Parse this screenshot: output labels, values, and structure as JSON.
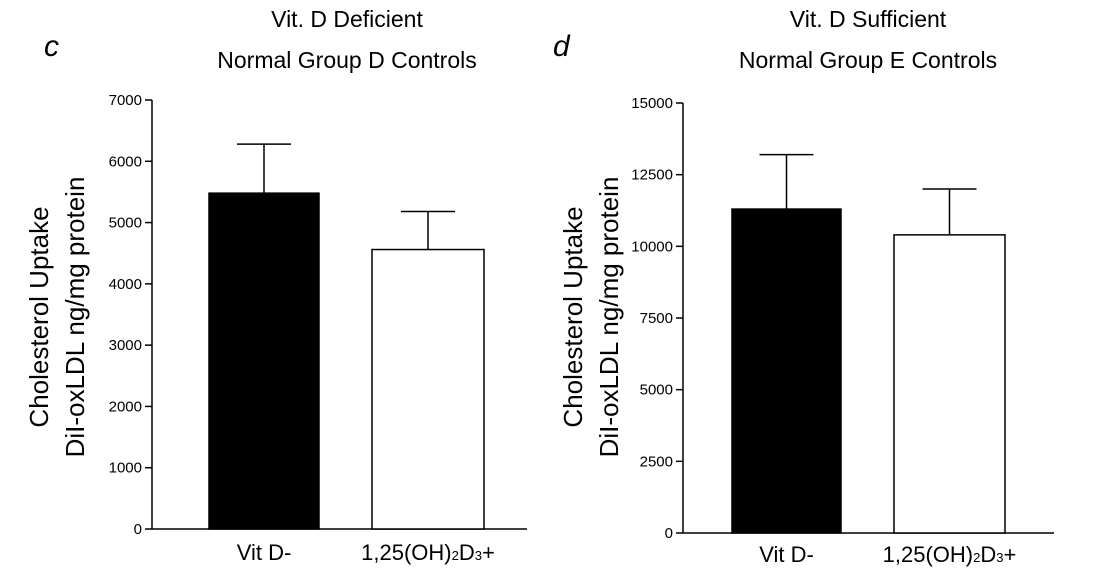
{
  "chart_data": [
    {
      "type": "bar",
      "panel_letter": "c",
      "title_lines": [
        "Vit. D Deficient",
        "Normal Group D Controls"
      ],
      "ylabel_lines": [
        "Cholesterol Uptake",
        "DiI-oxLDL ng/mg protein"
      ],
      "categories": [
        "Vit D-",
        "1,25(OH)2D3+"
      ],
      "values": [
        5480,
        4560
      ],
      "errors": [
        800,
        620
      ],
      "bar_colors": [
        "#000000",
        "#ffffff"
      ],
      "ylim": [
        0,
        7000
      ],
      "yticks": [
        0,
        1000,
        2000,
        3000,
        4000,
        5000,
        6000,
        7000
      ],
      "grid": false,
      "legend": "none"
    },
    {
      "type": "bar",
      "panel_letter": "d",
      "title_lines": [
        "Vit. D Sufficient",
        "Normal Group E Controls"
      ],
      "ylabel_lines": [
        "Cholesterol Uptake",
        "DiI-oxLDL ng/mg protein"
      ],
      "categories": [
        "Vit D-",
        "1,25(OH)2D3+"
      ],
      "values": [
        11300,
        10400
      ],
      "errors": [
        1900,
        1600
      ],
      "bar_colors": [
        "#000000",
        "#ffffff"
      ],
      "ylim": [
        0,
        15000
      ],
      "yticks": [
        0,
        2500,
        5000,
        7500,
        10000,
        12500,
        15000
      ],
      "grid": false,
      "legend": "none"
    }
  ]
}
